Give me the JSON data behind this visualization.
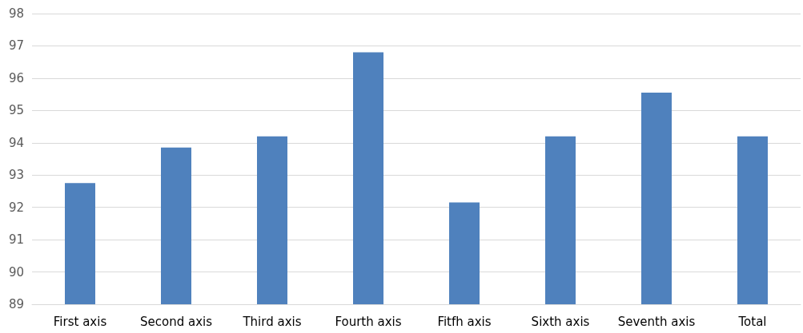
{
  "chart_data": {
    "type": "bar",
    "categories": [
      "First axis",
      "Second axis",
      "Third axis",
      "Fourth axis",
      "Fitfh axis",
      "Sixth axis",
      "Seventh axis",
      "Total"
    ],
    "values": [
      92.75,
      93.85,
      94.2,
      96.8,
      92.15,
      94.2,
      95.55,
      94.2
    ],
    "color": "#4f81bd",
    "ylim": [
      89,
      98
    ],
    "yticks": [
      89,
      90,
      91,
      92,
      93,
      94,
      95,
      96,
      97,
      98
    ],
    "grid": "y"
  }
}
